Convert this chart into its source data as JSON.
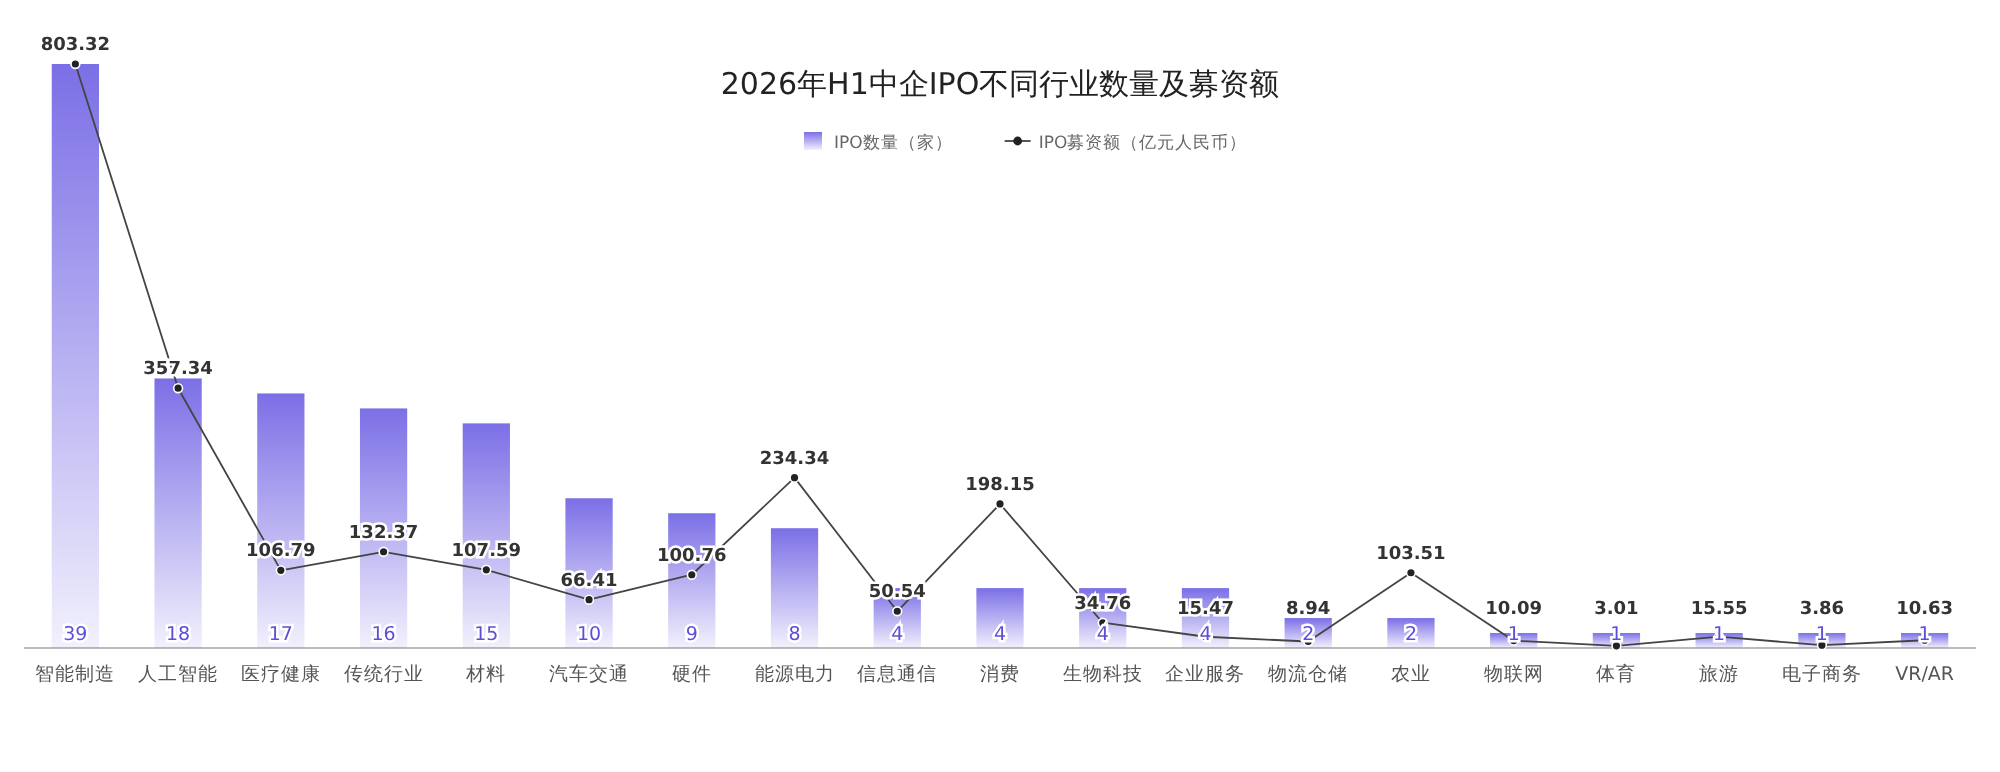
{
  "chart_data": {
    "type": "bar",
    "title": "2026年H1中企IPO不同行业数量及募资额",
    "categories": [
      "智能制造",
      "人工智能",
      "医疗健康",
      "传统行业",
      "材料",
      "汽车交通",
      "硬件",
      "能源电力",
      "信息通信",
      "消费",
      "生物科技",
      "企业服务",
      "物流仓储",
      "农业",
      "物联网",
      "体育",
      "旅游",
      "电子商务",
      "VR/AR"
    ],
    "series": [
      {
        "name": "IPO数量（家）",
        "color": "#7b6fe6",
        "values": [
          39,
          18,
          17,
          16,
          15,
          10,
          9,
          8,
          4,
          4,
          4,
          4,
          2,
          2,
          1,
          1,
          1,
          1,
          1
        ]
      },
      {
        "name": "IPO募资额（亿元人民币）",
        "type": "line",
        "axis": "y2",
        "color": "#444444",
        "values": [
          803.32,
          357.34,
          106.79,
          132.37,
          107.59,
          66.41,
          100.76,
          234.34,
          50.54,
          198.15,
          34.76,
          15.47,
          8.94,
          103.51,
          10.09,
          3.01,
          15.55,
          3.86,
          10.63
        ]
      }
    ],
    "data_labels": true,
    "legend": "top",
    "marker": "circle",
    "grid": false
  }
}
